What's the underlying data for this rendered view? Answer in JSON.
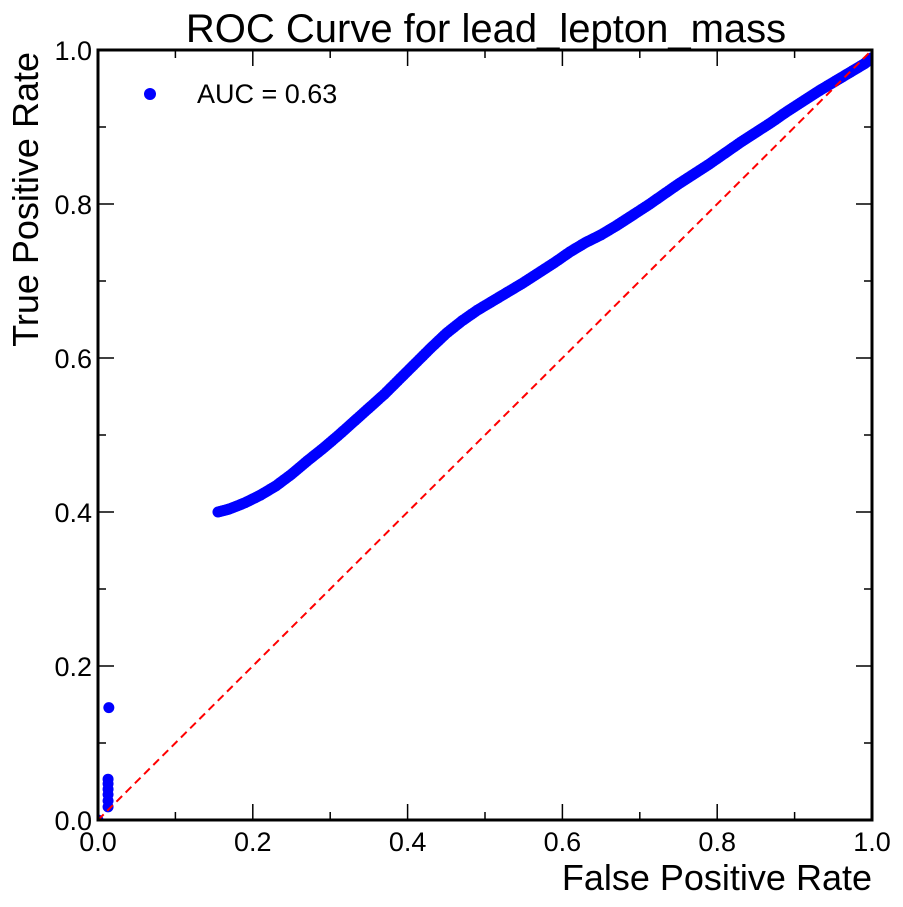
{
  "chart_data": {
    "type": "scatter",
    "title": "ROC Curve for lead_lepton_mass",
    "xlabel": "False Positive Rate",
    "ylabel": "True Positive Rate",
    "xlim": [
      0.0,
      1.0
    ],
    "ylim": [
      0.0,
      1.0
    ],
    "x_ticks": [
      "0.0",
      "0.2",
      "0.4",
      "0.6",
      "0.8",
      "1.0"
    ],
    "y_ticks": [
      "0.0",
      "0.2",
      "0.4",
      "0.6",
      "0.8",
      "1.0"
    ],
    "grid": false,
    "legend_position": "top-left",
    "series": [
      {
        "name": "AUC = 0.63",
        "color": "#0000ff",
        "marker": "circle",
        "points": [
          [
            0.0,
            0.0
          ],
          [
            0.013,
            0.017
          ],
          [
            0.013,
            0.025
          ],
          [
            0.013,
            0.033
          ],
          [
            0.013,
            0.04
          ],
          [
            0.013,
            0.047
          ],
          [
            0.013,
            0.053
          ],
          [
            0.014,
            0.146
          ],
          [
            0.155,
            0.4
          ],
          [
            0.17,
            0.404
          ],
          [
            0.19,
            0.412
          ],
          [
            0.21,
            0.422
          ],
          [
            0.23,
            0.434
          ],
          [
            0.25,
            0.449
          ],
          [
            0.27,
            0.466
          ],
          [
            0.29,
            0.482
          ],
          [
            0.31,
            0.499
          ],
          [
            0.33,
            0.517
          ],
          [
            0.35,
            0.535
          ],
          [
            0.37,
            0.553
          ],
          [
            0.39,
            0.573
          ],
          [
            0.41,
            0.593
          ],
          [
            0.43,
            0.613
          ],
          [
            0.45,
            0.632
          ],
          [
            0.47,
            0.648
          ],
          [
            0.49,
            0.662
          ],
          [
            0.51,
            0.674
          ],
          [
            0.53,
            0.686
          ],
          [
            0.55,
            0.698
          ],
          [
            0.57,
            0.711
          ],
          [
            0.59,
            0.724
          ],
          [
            0.61,
            0.738
          ],
          [
            0.63,
            0.75
          ],
          [
            0.65,
            0.76
          ],
          [
            0.67,
            0.772
          ],
          [
            0.69,
            0.785
          ],
          [
            0.71,
            0.798
          ],
          [
            0.73,
            0.812
          ],
          [
            0.75,
            0.826
          ],
          [
            0.77,
            0.839
          ],
          [
            0.79,
            0.852
          ],
          [
            0.81,
            0.866
          ],
          [
            0.83,
            0.88
          ],
          [
            0.85,
            0.893
          ],
          [
            0.87,
            0.906
          ],
          [
            0.89,
            0.92
          ],
          [
            0.91,
            0.933
          ],
          [
            0.93,
            0.946
          ],
          [
            0.95,
            0.958
          ],
          [
            0.97,
            0.97
          ],
          [
            0.99,
            0.982
          ],
          [
            1.0,
            0.99
          ]
        ]
      },
      {
        "name": "",
        "color": "#ff0000",
        "style": "dashed",
        "points": [
          [
            0.0,
            0.0
          ],
          [
            1.0,
            1.0
          ]
        ]
      }
    ]
  }
}
